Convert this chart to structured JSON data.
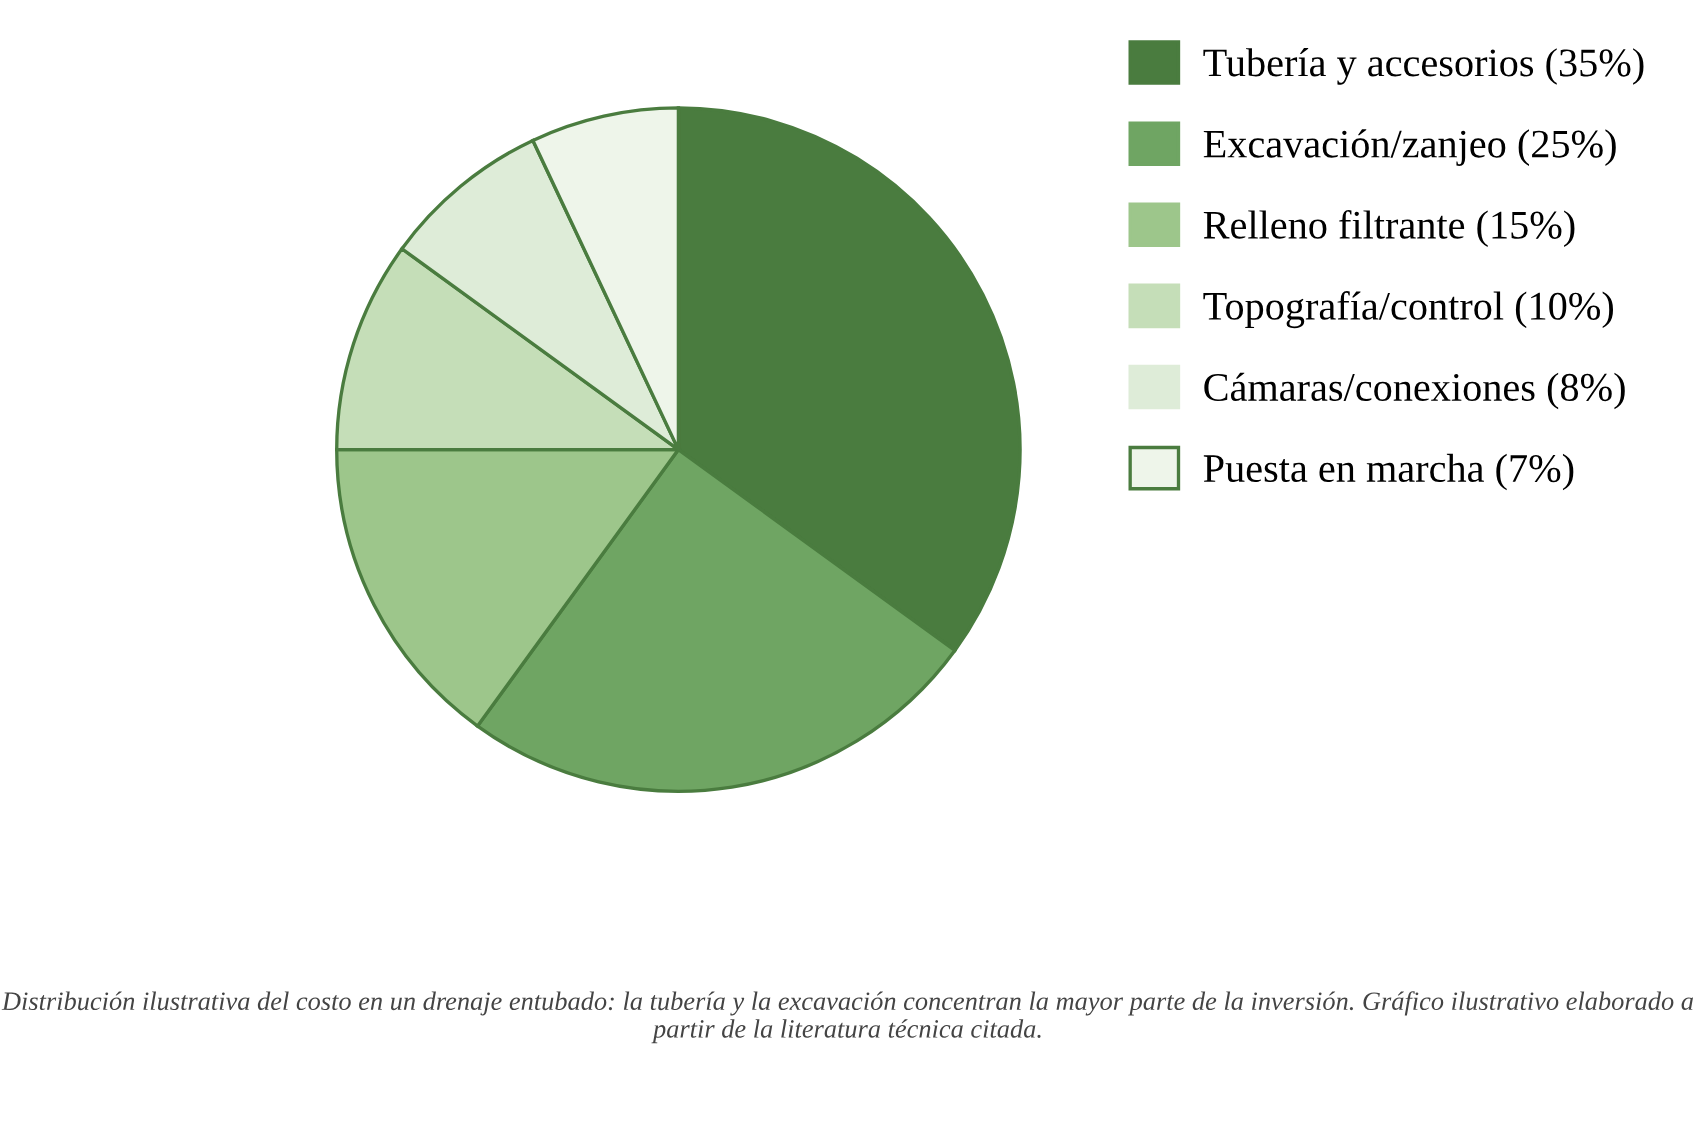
{
  "chart_data": {
    "type": "pie",
    "categories": [
      "Tubería y accesorios (35%)",
      "Excavación/zanjeo (25%)",
      "Relleno filtrante (15%)",
      "Topografía/control (10%)",
      "Cámaras/conexiones (8%)",
      "Puesta en marcha (7%)"
    ],
    "values": [
      35,
      25,
      15,
      10,
      8,
      7
    ],
    "colors": [
      "#4a7c3f",
      "#6fa563",
      "#9dc68b",
      "#c5deb8",
      "#deecd8",
      "#eef5ea"
    ],
    "legend": "right",
    "annotations": [
      "Distribución ilustrativa del costo en un drenaje entubado: la tubería y la excavación concentran la mayor parte de la inversión. Gráfico ilustrativo elaborado a partir de la literatura técnica citada."
    ]
  }
}
